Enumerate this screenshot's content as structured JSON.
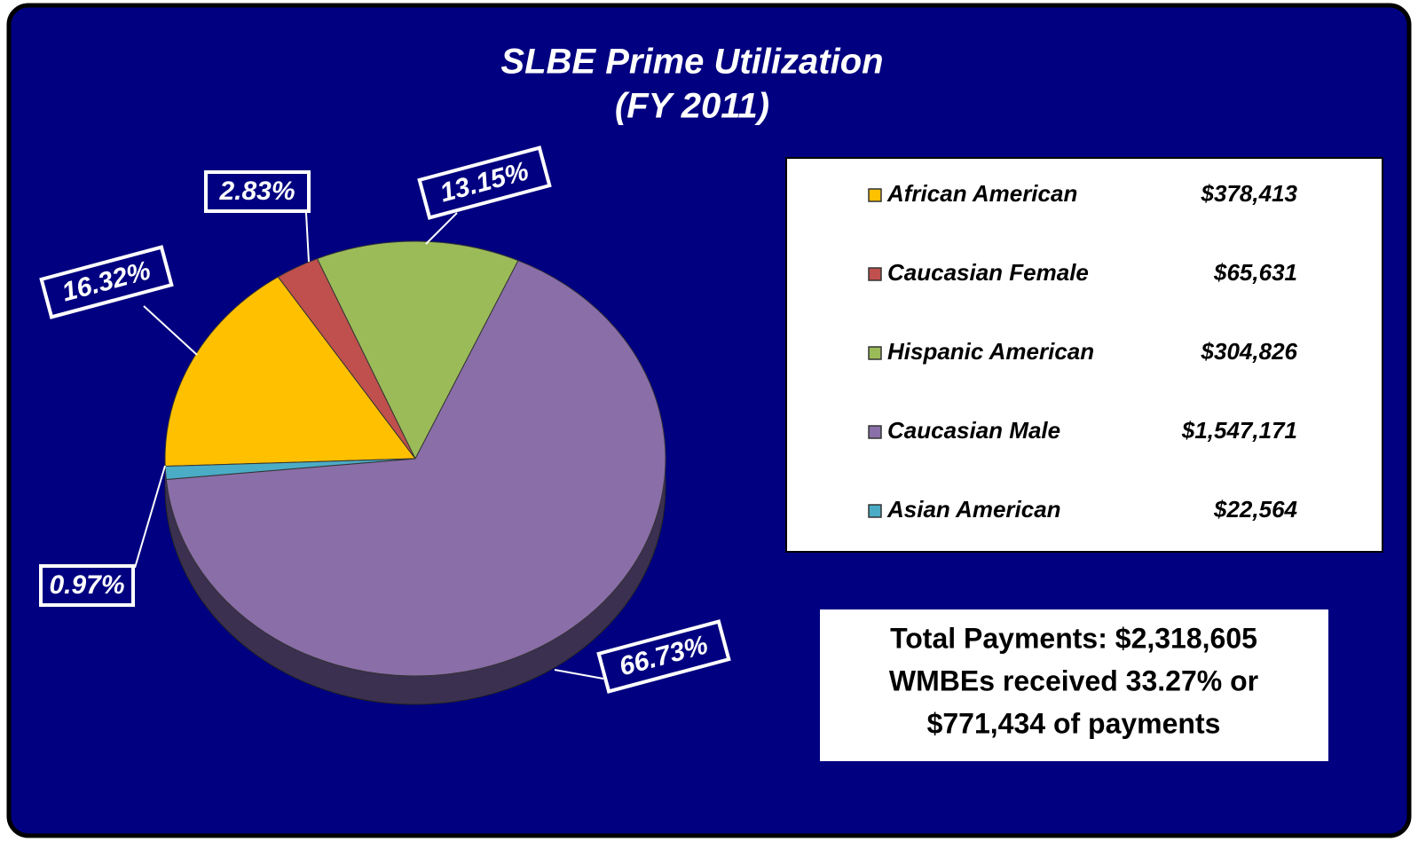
{
  "chart_data": {
    "type": "pie",
    "title": "SLBE Prime Utilization",
    "subtitle": "(FY 2011)",
    "categories": [
      "African American",
      "Caucasian Female",
      "Hispanic American",
      "Caucasian Male",
      "Asian American"
    ],
    "values": [
      16.32,
      2.83,
      13.15,
      66.73,
      0.97
    ],
    "value_labels": [
      "16.32%",
      "2.83%",
      "13.15%",
      "66.73%",
      "0.97%"
    ],
    "amount_labels": [
      "$378,413",
      "$65,631",
      "$304,826",
      "$1,547,171",
      "$22,564"
    ],
    "colors": [
      "#FFC000",
      "#C0504D",
      "#9BBB59",
      "#8A6EA8",
      "#4BACC6"
    ],
    "annotation": [
      "Total Payments: $2,318,605",
      "WMBEs received 33.27% or",
      "$771,434 of payments"
    ]
  }
}
